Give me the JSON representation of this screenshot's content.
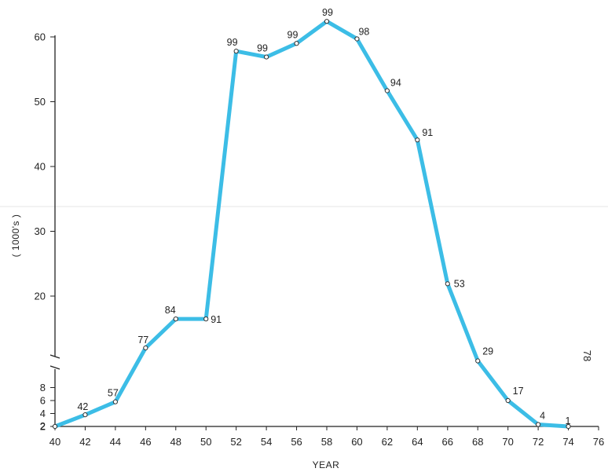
{
  "chart_data": {
    "type": "line",
    "title": "",
    "xlabel": "YEAR",
    "ylabel": "( 1000's )",
    "x": [
      40,
      42,
      44,
      46,
      48,
      50,
      52,
      54,
      56,
      58,
      60,
      62,
      64,
      66,
      68,
      70,
      72,
      74
    ],
    "series": [
      {
        "values": [
          2,
          3.8,
          5.8,
          13.2,
          17,
          17,
          57.8,
          56.9,
          59,
          62.4,
          59.7,
          51.7,
          44.1,
          21.9,
          11.5,
          6,
          2.3,
          2
        ],
        "point_labels": [
          "",
          "42",
          "57",
          "77",
          "84",
          "91",
          "99",
          "99",
          "99",
          "99",
          "98",
          "94",
          "91",
          "53",
          "29",
          "17",
          "4",
          "1"
        ]
      }
    ],
    "xlim": [
      40,
      76
    ],
    "x_ticks": [
      "40",
      "42",
      "44",
      "46",
      "48",
      "50",
      "52",
      "54",
      "56",
      "58",
      "60",
      "62",
      "64",
      "66",
      "68",
      "70",
      "72",
      "74",
      "76"
    ],
    "y_axis_break": true,
    "y_ticks_lower": [
      "2",
      "4",
      "6",
      "8"
    ],
    "y_ticks_upper": [
      "20",
      "30",
      "40",
      "50",
      "60"
    ],
    "grid": false,
    "line_color": "#3cbde6",
    "page_number": "78"
  }
}
